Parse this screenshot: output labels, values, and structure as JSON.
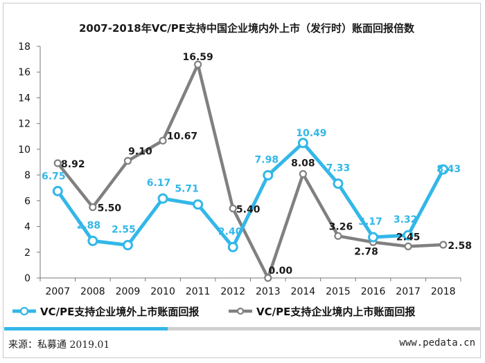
{
  "chart_data": {
    "type": "line",
    "title": "2007-2018年VC/PE支持中国企业境内外上市（发行时）账面回报倍数",
    "categories": [
      "2007",
      "2008",
      "2009",
      "2010",
      "2011",
      "2012",
      "2013",
      "2014",
      "2015",
      "2016",
      "2017",
      "2018"
    ],
    "y_ticks": [
      "0",
      "2",
      "4",
      "6",
      "8",
      "10",
      "12",
      "14",
      "16",
      "18"
    ],
    "ylim": [
      0,
      18
    ],
    "grid": false,
    "legend_position": "bottom",
    "series": [
      {
        "name": "VC/PE支持企业境外上市账面回报",
        "color": "#33b7e8",
        "values": [
          6.75,
          2.88,
          2.55,
          6.17,
          5.71,
          2.4,
          7.98,
          10.49,
          7.33,
          3.17,
          3.32,
          8.43
        ],
        "labels": [
          "6.75",
          "2.88",
          "2.55",
          "6.17",
          "5.71",
          "2.40",
          "7.98",
          "10.49",
          "7.33",
          "3.17",
          "3.32",
          "8.43"
        ]
      },
      {
        "name": "VC/PE支持企业境内上市账面回报",
        "color": "#808080",
        "values": [
          8.92,
          5.5,
          9.1,
          10.67,
          16.59,
          5.4,
          0.0,
          8.08,
          3.26,
          2.78,
          2.45,
          2.58
        ],
        "labels": [
          "8.92",
          "5.50",
          "9.10",
          "10.67",
          "16.59",
          "5.40",
          "0.00",
          "8.08",
          "3.26",
          "2.78",
          "2.45",
          "2.58"
        ]
      }
    ]
  },
  "footer": {
    "source": "来源：私募通 2019.01",
    "website": "www.pedata.cn"
  }
}
